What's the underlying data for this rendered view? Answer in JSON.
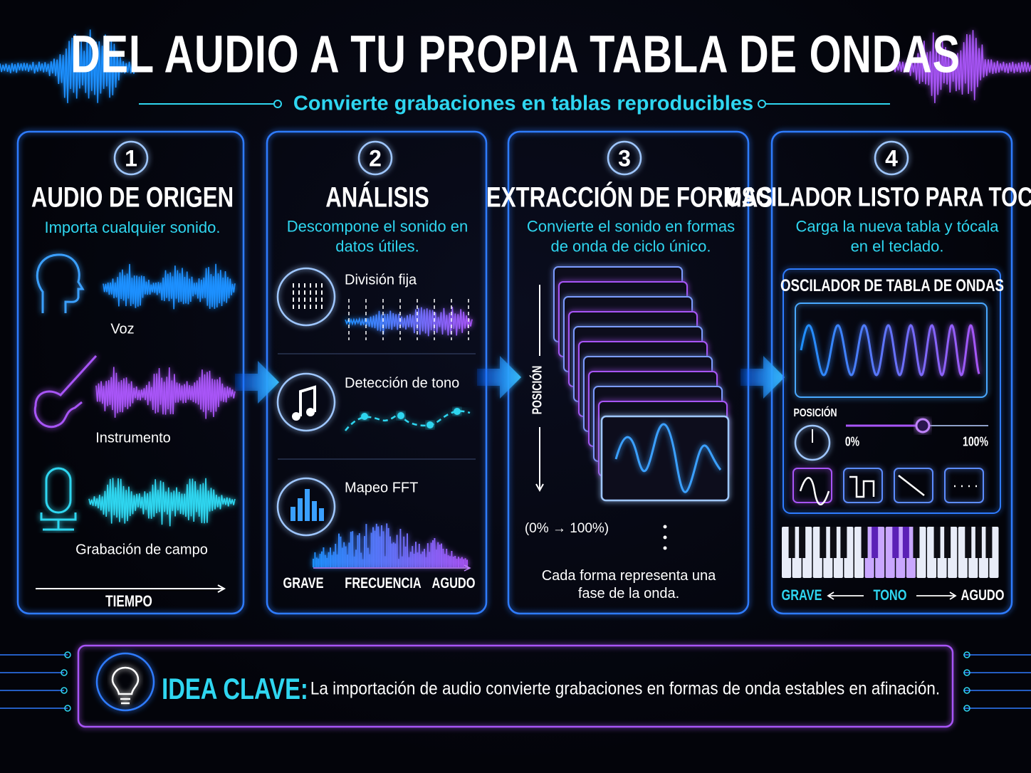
{
  "header": {
    "title": "DEL AUDIO A TU PROPIA TABLA DE ONDAS",
    "subtitle": "Convierte grabaciones en tablas reproducibles"
  },
  "steps": [
    {
      "number": "1",
      "title": "AUDIO DE ORIGEN",
      "description": "Importa cualquier sonido.",
      "items": [
        "Voz",
        "Instrumento",
        "Grabación de campo"
      ],
      "axis": "TIEMPO"
    },
    {
      "number": "2",
      "title": "ANÁLISIS",
      "description": "Descompone el sonido en datos útiles.",
      "items": [
        "División fija",
        "Detección de tono",
        "Mapeo FFT"
      ],
      "axis_labels": [
        "GRAVE",
        "FRECUENCIA",
        "AGUDO"
      ]
    },
    {
      "number": "3",
      "title": "EXTRACCIÓN DE FORMAS",
      "description": "Convierte el sonido en formas de onda de ciclo único.",
      "axis": "POSICIÓN",
      "range": "(0% → 100%)",
      "caption": "Cada forma representa una fase de la onda."
    },
    {
      "number": "4",
      "title": "OSCILADOR LISTO PARA TOCAR",
      "description": "Carga la nueva tabla y tócala en el teclado.",
      "panel_title": "OSCILADOR DE TABLA DE ONDAS",
      "position_label": "POSICIÓN",
      "slider_min": "0%",
      "slider_max": "100%",
      "keyboard_labels": [
        "GRAVE",
        "TONO",
        "AGUDO"
      ]
    }
  ],
  "key_idea": {
    "label": "IDEA CLAVE:",
    "text": "La importación de audio convierte grabaciones en formas de onda estables en afinación."
  }
}
